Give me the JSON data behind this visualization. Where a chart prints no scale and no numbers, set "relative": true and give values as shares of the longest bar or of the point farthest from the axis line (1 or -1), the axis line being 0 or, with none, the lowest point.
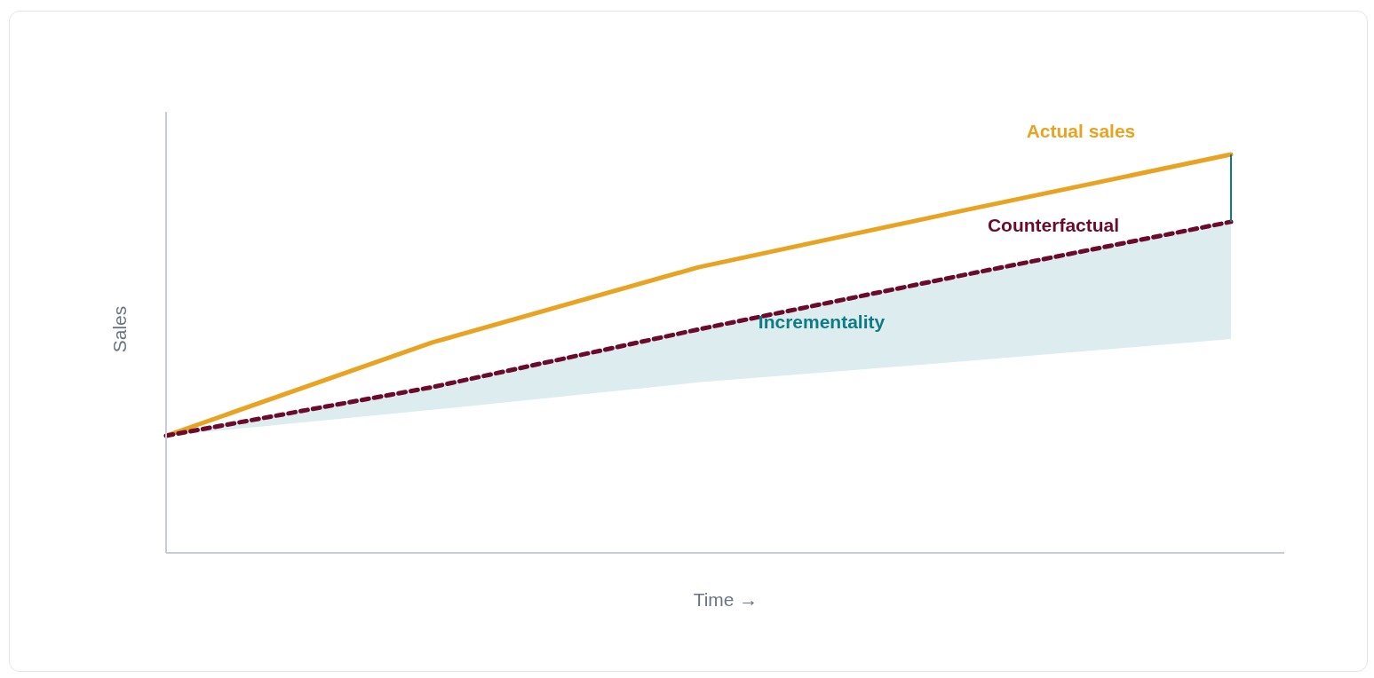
{
  "chart_data": {
    "type": "line",
    "relative": true,
    "xlabel": "Time →",
    "ylabel": "Sales",
    "categories": [
      null,
      null,
      null,
      null,
      null
    ],
    "series": [
      {
        "name": "Actual sales",
        "color": "#e8a323",
        "values": [
          0.294,
          0.528,
          0.717,
          0.86,
          1
        ]
      },
      {
        "name": "Counterfactual",
        "color": "#6b0a2a",
        "values": [
          0.294,
          0.416,
          0.561,
          0.698,
          0.831
        ],
        "line_style": "dashed",
        "lower": [
          0.294,
          0.359,
          0.428,
          0.481,
          0.537
        ],
        "upper": [
          0.294,
          0.416,
          0.561,
          0.698,
          0.831
        ]
      }
    ],
    "annotations": [
      "Incrementality"
    ]
  }
}
